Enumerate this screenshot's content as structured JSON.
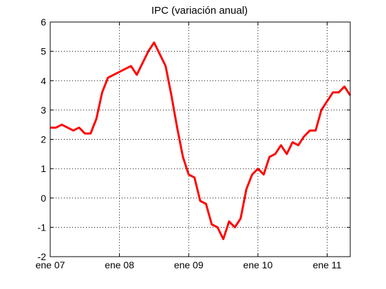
{
  "chart_data": {
    "type": "line",
    "title": "IPC (variación anual)",
    "xlabel": "",
    "ylabel": "",
    "ylim": [
      -2,
      6
    ],
    "xlim": [
      "2007-01",
      "2011-05"
    ],
    "grid": true,
    "y_ticks": [
      "-2",
      "-1",
      "0",
      "1",
      "2",
      "3",
      "4",
      "5",
      "6"
    ],
    "x_ticks": [
      {
        "label": "ene 07",
        "x": "2007-01"
      },
      {
        "label": "ene 08",
        "x": "2008-01"
      },
      {
        "label": "ene 09",
        "x": "2009-01"
      },
      {
        "label": "ene 10",
        "x": "2010-01"
      },
      {
        "label": "ene 11",
        "x": "2011-01"
      }
    ],
    "series": [
      {
        "color": "#ff0000",
        "x": [
          "2007-01",
          "2007-02",
          "2007-03",
          "2007-04",
          "2007-05",
          "2007-06",
          "2007-07",
          "2007-08",
          "2007-09",
          "2007-10",
          "2007-11",
          "2007-12",
          "2008-01",
          "2008-02",
          "2008-03",
          "2008-04",
          "2008-05",
          "2008-06",
          "2008-07",
          "2008-08",
          "2008-09",
          "2008-10",
          "2008-11",
          "2008-12",
          "2009-01",
          "2009-02",
          "2009-03",
          "2009-04",
          "2009-05",
          "2009-06",
          "2009-07",
          "2009-08",
          "2009-09",
          "2009-10",
          "2009-11",
          "2009-12",
          "2010-01",
          "2010-02",
          "2010-03",
          "2010-04",
          "2010-05",
          "2010-06",
          "2010-07",
          "2010-08",
          "2010-09",
          "2010-10",
          "2010-11",
          "2010-12",
          "2011-01",
          "2011-02",
          "2011-03",
          "2011-04",
          "2011-05"
        ],
        "y": [
          2.4,
          2.4,
          2.5,
          2.4,
          2.3,
          2.4,
          2.2,
          2.2,
          2.7,
          3.6,
          4.1,
          4.2,
          4.3,
          4.4,
          4.5,
          4.2,
          4.6,
          5.0,
          5.3,
          4.9,
          4.5,
          3.5,
          2.4,
          1.4,
          0.8,
          0.7,
          -0.1,
          -0.2,
          -0.9,
          -1.0,
          -1.4,
          -0.8,
          -1.0,
          -0.7,
          0.3,
          0.8,
          1.0,
          0.8,
          1.4,
          1.5,
          1.8,
          1.5,
          1.9,
          1.8,
          2.1,
          2.3,
          2.3,
          3.0,
          3.3,
          3.6,
          3.6,
          3.8,
          3.5
        ]
      }
    ]
  }
}
